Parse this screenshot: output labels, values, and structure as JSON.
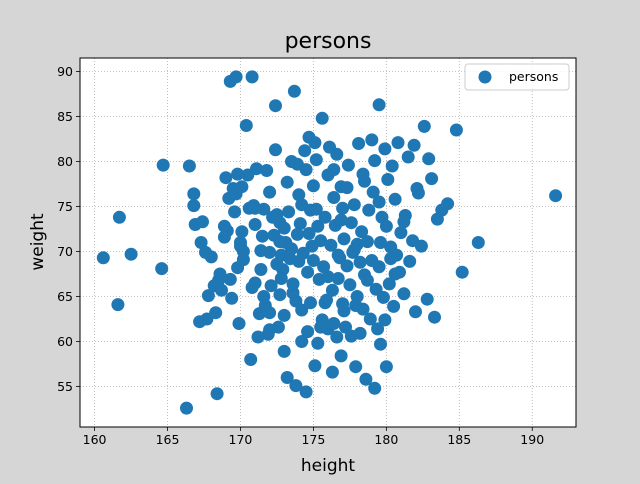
{
  "chart_data": {
    "type": "scatter",
    "title": "persons",
    "xlabel": "height",
    "ylabel": "weight",
    "xlim": [
      159,
      193
    ],
    "ylim": [
      50.5,
      91.5
    ],
    "xticks": [
      160,
      165,
      170,
      175,
      180,
      185,
      190
    ],
    "yticks": [
      55,
      60,
      65,
      70,
      75,
      80,
      85,
      90
    ],
    "grid": true,
    "legend": {
      "position": "top-right",
      "entries": [
        "persons"
      ]
    },
    "colors": {
      "marker": "#1f77b4",
      "background": "#d6d6d6",
      "plot": "#ffffff",
      "grid": "#b0b0b0"
    },
    "series": [
      {
        "name": "persons",
        "points": [
          [
            160.6,
            69.3
          ],
          [
            161.6,
            64.1
          ],
          [
            161.7,
            73.8
          ],
          [
            162.5,
            69.7
          ],
          [
            164.6,
            68.1
          ],
          [
            164.7,
            79.6
          ],
          [
            166.3,
            52.6
          ],
          [
            166.5,
            79.5
          ],
          [
            166.8,
            76.4
          ],
          [
            166.8,
            75.1
          ],
          [
            166.9,
            73.0
          ],
          [
            167.2,
            62.2
          ],
          [
            167.4,
            73.3
          ],
          [
            167.3,
            71.0
          ],
          [
            167.6,
            69.9
          ],
          [
            167.7,
            62.5
          ],
          [
            167.8,
            65.1
          ],
          [
            168.0,
            69.4
          ],
          [
            168.2,
            66.2
          ],
          [
            168.3,
            63.2
          ],
          [
            168.4,
            54.2
          ],
          [
            168.5,
            66.8
          ],
          [
            168.6,
            67.5
          ],
          [
            168.7,
            65.7
          ],
          [
            168.9,
            72.8
          ],
          [
            169.0,
            78.2
          ],
          [
            169.1,
            72.3
          ],
          [
            169.2,
            75.9
          ],
          [
            169.3,
            66.9
          ],
          [
            169.4,
            64.8
          ],
          [
            169.3,
            88.9
          ],
          [
            169.7,
            89.4
          ],
          [
            169.5,
            77.0
          ],
          [
            169.6,
            74.4
          ],
          [
            169.7,
            76.4
          ],
          [
            169.8,
            78.6
          ],
          [
            169.9,
            62.0
          ],
          [
            170.0,
            71.0
          ],
          [
            170.0,
            70.6
          ],
          [
            170.1,
            77.2
          ],
          [
            170.2,
            69.1
          ],
          [
            170.4,
            84.0
          ],
          [
            170.5,
            78.5
          ],
          [
            170.6,
            74.8
          ],
          [
            170.7,
            58.0
          ],
          [
            170.8,
            89.4
          ],
          [
            170.9,
            75.1
          ],
          [
            171.0,
            73.0
          ],
          [
            171.0,
            66.5
          ],
          [
            171.1,
            79.2
          ],
          [
            171.2,
            60.5
          ],
          [
            171.3,
            63.1
          ],
          [
            171.4,
            68.0
          ],
          [
            171.5,
            71.7
          ],
          [
            171.6,
            65.0
          ],
          [
            171.6,
            74.7
          ],
          [
            171.8,
            79.0
          ],
          [
            171.9,
            60.8
          ],
          [
            172.0,
            69.9
          ],
          [
            172.0,
            76.6
          ],
          [
            172.0,
            63.2
          ],
          [
            172.1,
            66.2
          ],
          [
            172.3,
            71.8
          ],
          [
            172.4,
            86.2
          ],
          [
            172.4,
            81.3
          ],
          [
            172.5,
            74.1
          ],
          [
            172.6,
            61.6
          ],
          [
            172.7,
            73.2
          ],
          [
            172.7,
            65.2
          ],
          [
            172.8,
            69.6
          ],
          [
            172.9,
            68.0
          ],
          [
            173.0,
            62.9
          ],
          [
            173.0,
            72.6
          ],
          [
            173.1,
            71.0
          ],
          [
            173.2,
            77.7
          ],
          [
            173.2,
            56.0
          ],
          [
            173.3,
            74.4
          ],
          [
            173.4,
            69.2
          ],
          [
            173.5,
            80.0
          ],
          [
            173.6,
            65.4
          ],
          [
            173.6,
            66.4
          ],
          [
            173.7,
            87.8
          ],
          [
            173.8,
            55.1
          ],
          [
            173.9,
            71.9
          ],
          [
            174.0,
            68.9
          ],
          [
            174.1,
            73.1
          ],
          [
            174.2,
            63.5
          ],
          [
            174.2,
            75.2
          ],
          [
            174.3,
            69.8
          ],
          [
            174.4,
            81.2
          ],
          [
            174.5,
            79.1
          ],
          [
            174.5,
            54.4
          ],
          [
            174.6,
            67.7
          ],
          [
            174.7,
            72.0
          ],
          [
            174.7,
            82.7
          ],
          [
            174.8,
            64.3
          ],
          [
            174.9,
            70.6
          ],
          [
            175.0,
            77.3
          ],
          [
            175.1,
            82.1
          ],
          [
            175.1,
            57.3
          ],
          [
            175.2,
            74.7
          ],
          [
            175.3,
            59.8
          ],
          [
            175.4,
            66.9
          ],
          [
            175.5,
            71.2
          ],
          [
            175.6,
            62.4
          ],
          [
            175.6,
            84.8
          ],
          [
            175.7,
            68.3
          ],
          [
            175.8,
            73.8
          ],
          [
            175.9,
            64.6
          ],
          [
            176.0,
            78.5
          ],
          [
            176.0,
            61.4
          ],
          [
            176.1,
            81.6
          ],
          [
            176.2,
            70.7
          ],
          [
            176.3,
            56.6
          ],
          [
            176.3,
            65.7
          ],
          [
            176.4,
            76.0
          ],
          [
            176.5,
            72.9
          ],
          [
            176.6,
            60.5
          ],
          [
            176.6,
            80.8
          ],
          [
            176.7,
            67.0
          ],
          [
            176.8,
            69.3
          ],
          [
            176.9,
            58.4
          ],
          [
            177.0,
            74.8
          ],
          [
            177.0,
            64.2
          ],
          [
            177.1,
            71.4
          ],
          [
            177.2,
            61.6
          ],
          [
            177.3,
            77.1
          ],
          [
            177.3,
            68.4
          ],
          [
            177.4,
            79.6
          ],
          [
            177.5,
            66.3
          ],
          [
            177.6,
            73.2
          ],
          [
            177.6,
            60.6
          ],
          [
            177.7,
            69.9
          ],
          [
            177.8,
            75.2
          ],
          [
            177.9,
            57.2
          ],
          [
            178.0,
            70.8
          ],
          [
            178.0,
            65.0
          ],
          [
            178.1,
            82.0
          ],
          [
            178.2,
            68.8
          ],
          [
            178.3,
            72.2
          ],
          [
            178.4,
            63.6
          ],
          [
            178.5,
            77.8
          ],
          [
            178.5,
            67.4
          ],
          [
            178.6,
            55.8
          ],
          [
            178.7,
            71.1
          ],
          [
            178.8,
            74.6
          ],
          [
            178.9,
            62.5
          ],
          [
            179.0,
            69.0
          ],
          [
            179.0,
            82.4
          ],
          [
            179.1,
            76.6
          ],
          [
            179.2,
            54.8
          ],
          [
            179.3,
            65.8
          ],
          [
            179.4,
            61.4
          ],
          [
            179.5,
            86.3
          ],
          [
            179.5,
            68.3
          ],
          [
            179.6,
            59.7
          ],
          [
            179.7,
            73.8
          ],
          [
            179.8,
            64.9
          ],
          [
            179.9,
            81.4
          ],
          [
            180.0,
            72.8
          ],
          [
            180.0,
            57.2
          ],
          [
            180.1,
            78.0
          ],
          [
            180.2,
            66.4
          ],
          [
            180.3,
            70.5
          ],
          [
            180.5,
            63.9
          ],
          [
            180.6,
            75.8
          ],
          [
            180.7,
            69.6
          ],
          [
            180.8,
            82.1
          ],
          [
            180.9,
            67.7
          ],
          [
            181.0,
            72.1
          ],
          [
            181.2,
            65.3
          ],
          [
            181.3,
            74.0
          ],
          [
            181.5,
            80.5
          ],
          [
            181.6,
            68.9
          ],
          [
            181.8,
            71.2
          ],
          [
            181.9,
            81.8
          ],
          [
            182.0,
            63.3
          ],
          [
            182.2,
            76.5
          ],
          [
            182.4,
            70.6
          ],
          [
            182.6,
            83.9
          ],
          [
            182.8,
            64.7
          ],
          [
            182.9,
            80.3
          ],
          [
            183.1,
            78.1
          ],
          [
            183.3,
            62.7
          ],
          [
            183.5,
            73.6
          ],
          [
            183.8,
            74.6
          ],
          [
            184.2,
            75.3
          ],
          [
            184.8,
            83.5
          ],
          [
            185.2,
            67.7
          ],
          [
            186.3,
            71.0
          ],
          [
            191.6,
            76.2
          ],
          [
            170.2,
            70.0
          ],
          [
            171.0,
            74.8
          ],
          [
            172.5,
            68.6
          ],
          [
            173.8,
            64.5
          ],
          [
            174.0,
            76.3
          ],
          [
            175.0,
            69.0
          ],
          [
            176.0,
            67.2
          ],
          [
            176.9,
            73.5
          ],
          [
            177.8,
            70.2
          ],
          [
            178.7,
            66.8
          ],
          [
            179.5,
            75.5
          ],
          [
            180.3,
            69.2
          ],
          [
            181.2,
            73.3
          ],
          [
            182.1,
            77.0
          ],
          [
            172.2,
            73.8
          ],
          [
            174.6,
            61.1
          ],
          [
            175.8,
            64.3
          ],
          [
            176.4,
            62.0
          ],
          [
            177.9,
            64.0
          ],
          [
            179.9,
            62.4
          ],
          [
            172.8,
            67.0
          ],
          [
            173.5,
            70.3
          ],
          [
            175.3,
            72.8
          ],
          [
            176.7,
            69.6
          ],
          [
            177.1,
            63.4
          ],
          [
            178.2,
            60.9
          ],
          [
            179.6,
            71.0
          ],
          [
            180.6,
            67.5
          ],
          [
            168.9,
            71.6
          ],
          [
            169.8,
            68.2
          ],
          [
            170.8,
            66.0
          ],
          [
            171.7,
            64.0
          ],
          [
            172.0,
            61.3
          ],
          [
            173.0,
            58.9
          ],
          [
            174.2,
            60.0
          ],
          [
            175.5,
            61.6
          ],
          [
            170.1,
            72.2
          ],
          [
            171.4,
            70.1
          ],
          [
            172.7,
            71.1
          ],
          [
            174.8,
            74.6
          ],
          [
            176.9,
            77.2
          ],
          [
            178.4,
            78.6
          ],
          [
            179.2,
            80.1
          ],
          [
            180.4,
            79.5
          ],
          [
            173.9,
            79.7
          ],
          [
            175.2,
            80.2
          ],
          [
            176.4,
            79.1
          ]
        ]
      }
    ]
  }
}
